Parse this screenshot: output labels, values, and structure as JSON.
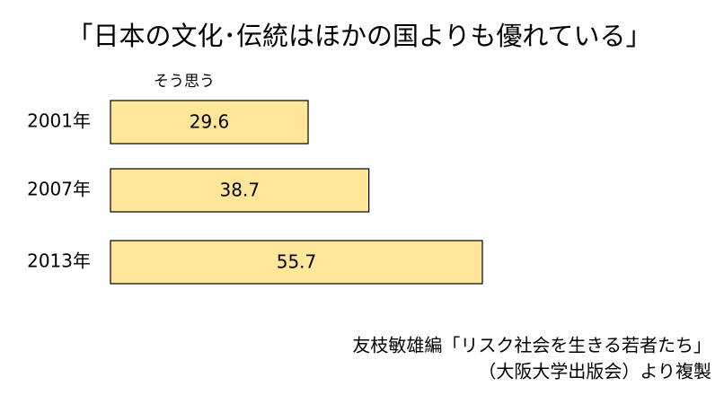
{
  "chart_data": {
    "type": "bar",
    "orientation": "horizontal",
    "title": "「日本の文化･伝統はほかの国よりも優れている」",
    "categories": [
      "2001年",
      "2007年",
      "2013年"
    ],
    "series": [
      {
        "name": "そう思う",
        "color": "#ffe699",
        "values": [
          29.6,
          38.7,
          55.7
        ]
      }
    ],
    "source": [
      "友枝敏雄編「リスク社会を生きる若者たち」",
      "（大阪大学出版会）より複製"
    ]
  }
}
